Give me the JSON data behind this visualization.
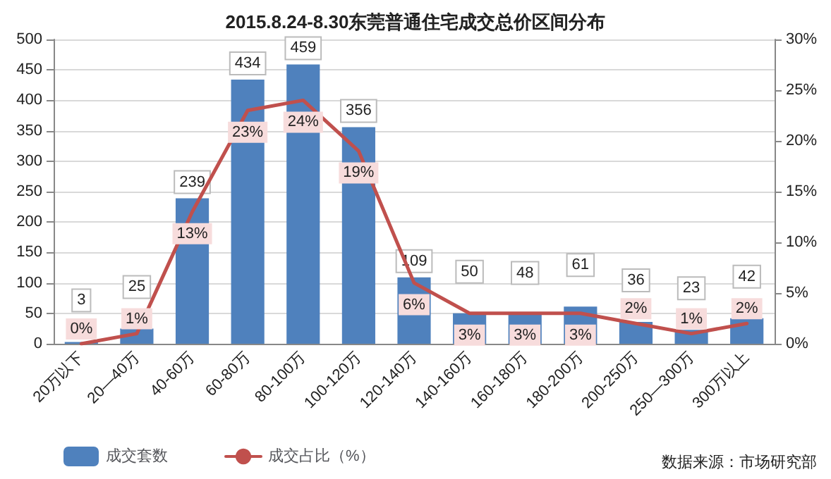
{
  "chart_data": {
    "type": "bar",
    "title": "2015.8.24-8.30东莞普通住宅成交总价区间分布",
    "categories": [
      "20万以下",
      "20—40万",
      "40-60万",
      "60-80万",
      "80-100万",
      "100-120万",
      "120-140万",
      "140-160万",
      "160-180万",
      "180-200万",
      "200-250万",
      "250—300万",
      "300万以上"
    ],
    "series": [
      {
        "name": "成交套数",
        "color": "#4f81bd",
        "values": [
          3,
          25,
          239,
          434,
          459,
          356,
          109,
          50,
          48,
          61,
          36,
          23,
          42
        ],
        "value_labels": [
          "3",
          "25",
          "239",
          "434",
          "459",
          "356",
          "109",
          "50",
          "48",
          "61",
          "36",
          "23",
          "42"
        ]
      },
      {
        "name": "成交占比（%）",
        "type": "line",
        "axis": "y2",
        "color": "#c0504d",
        "values": [
          0,
          1,
          13,
          23,
          24,
          19,
          6,
          3,
          3,
          3,
          2,
          1,
          2
        ],
        "value_labels": [
          "0%",
          "1%",
          "13%",
          "23%",
          "24%",
          "19%",
          "6%",
          "3%",
          "3%",
          "3%",
          "2%",
          "1%",
          "2%"
        ]
      }
    ],
    "ylim": [
      0,
      500
    ],
    "yticks": [
      0,
      50,
      100,
      150,
      200,
      250,
      300,
      350,
      400,
      450,
      500
    ],
    "y2lim": [
      0,
      30
    ],
    "y2ticks": [
      {
        "value": 0,
        "label": "0%"
      },
      {
        "value": 5,
        "label": "5%"
      },
      {
        "value": 10,
        "label": "10%"
      },
      {
        "value": 15,
        "label": "15%"
      },
      {
        "value": 20,
        "label": "20%"
      },
      {
        "value": 25,
        "label": "25%"
      },
      {
        "value": 30,
        "label": "30%"
      }
    ],
    "grid": "y",
    "legend": "bottom left",
    "marker": "none",
    "annotations": [
      "数据来源：市场研究部"
    ]
  }
}
